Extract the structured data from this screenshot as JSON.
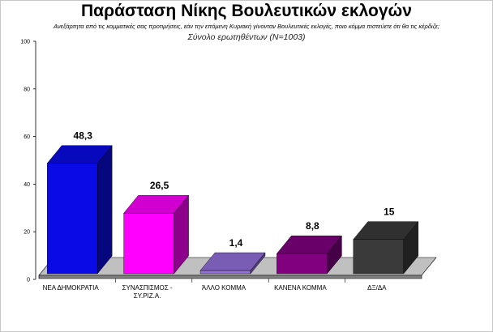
{
  "chart_data": {
    "type": "bar",
    "title": "Παράσταση Νίκης Βουλευτικών εκλογών",
    "subtitle": "Ανεξάρτητα από τις κομματικές σας προτιμήσεις, εάν την επόμενη Κυριακή γίνονταν Βουλευτικές εκλογές, ποιο κόμμα πιστεύετε ότι θα τις κέρδιζε;",
    "subtitle2": "Σύνολο ερωτηθέντων (Ν=1003)",
    "xlabel": "",
    "ylabel": "",
    "ylim": [
      0,
      100
    ],
    "yticks": [
      0,
      20,
      40,
      60,
      80,
      100
    ],
    "grid": false,
    "legend": "none",
    "categories": [
      [
        "ΝΕΑ ΔΗΜΟΚΡΑΤΙΑ"
      ],
      [
        "ΣΥΝΑΣΠΙΣΜΟΣ -",
        "ΣΥ.ΡΙΖ.Α."
      ],
      [
        "ΆΛΛΟ ΚΟΜΜΑ"
      ],
      [
        "ΚΑΝΕΝΑ ΚΟΜΜΑ"
      ],
      [
        "ΔΞ/ΔΑ"
      ]
    ],
    "values": [
      48.3,
      26.5,
      1.4,
      8.8,
      15
    ],
    "value_labels": [
      "48,3",
      "26,5",
      "1,4",
      "8,8",
      "15"
    ],
    "colors": [
      "#0a0ae6",
      "#ff00ff",
      "#9370db",
      "#800080",
      "#3a3a3a"
    ]
  }
}
